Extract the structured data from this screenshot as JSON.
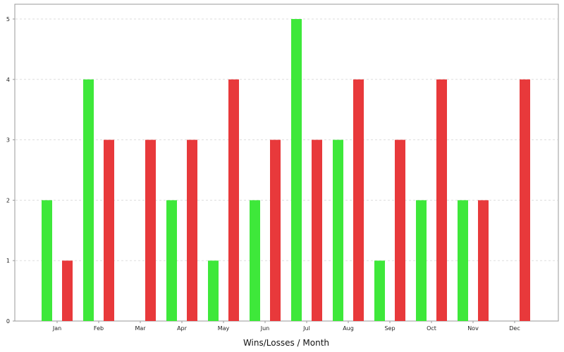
{
  "chart_data": {
    "type": "bar",
    "title": "",
    "xlabel": "Wins/Losses / Month",
    "ylabel": "",
    "ylim": [
      0,
      5
    ],
    "yticks": [
      0,
      1,
      2,
      3,
      4,
      5
    ],
    "grid": true,
    "categories": [
      "Jan",
      "Feb",
      "Mar",
      "Apr",
      "May",
      "Jun",
      "Jul",
      "Aug",
      "Sep",
      "Oct",
      "Nov",
      "Dec"
    ],
    "series": [
      {
        "color": "#3ee83a",
        "values": [
          2,
          4,
          0,
          2,
          1,
          2,
          5,
          3,
          1,
          2,
          2,
          0
        ]
      },
      {
        "color": "#e8393b",
        "values": [
          1,
          3,
          3,
          3,
          4,
          3,
          3,
          4,
          3,
          4,
          2,
          4
        ]
      }
    ]
  }
}
